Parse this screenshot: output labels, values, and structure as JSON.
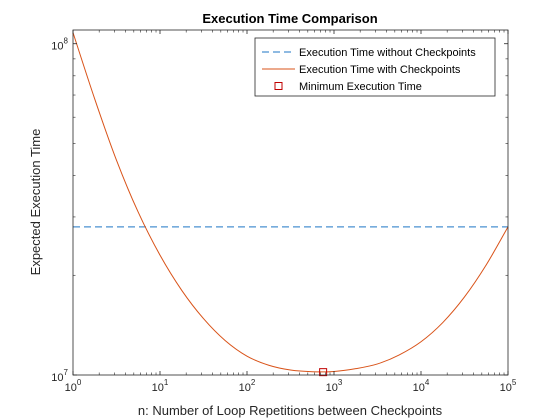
{
  "chart_data": {
    "type": "line",
    "title": "Execution Time Comparison",
    "xlabel": "n: Number of Loop Repetitions between Checkpoints",
    "ylabel": "Expected Execution Time",
    "xscale": "log",
    "yscale": "log",
    "xlim": [
      1,
      100000
    ],
    "ylim": [
      10000000,
      110000000
    ],
    "x_ticks": [
      1,
      10,
      100,
      1000,
      10000,
      100000
    ],
    "x_tick_labels": [
      {
        "base": "10",
        "exp": "0"
      },
      {
        "base": "10",
        "exp": "1"
      },
      {
        "base": "10",
        "exp": "2"
      },
      {
        "base": "10",
        "exp": "3"
      },
      {
        "base": "10",
        "exp": "4"
      },
      {
        "base": "10",
        "exp": "5"
      }
    ],
    "y_ticks": [
      10000000,
      100000000
    ],
    "y_tick_labels": [
      {
        "base": "10",
        "exp": "7"
      },
      {
        "base": "10",
        "exp": "8"
      }
    ],
    "grid": false,
    "legend_position": "top-right",
    "series": [
      {
        "name": "Execution Time without Checkpoints",
        "style": "dashed",
        "color": "#4A90D0",
        "x": [
          1,
          100000
        ],
        "y": [
          28000000,
          28000000
        ]
      },
      {
        "name": "Execution Time with Checkpoints",
        "style": "solid",
        "color": "#D95319",
        "x": [
          1,
          1.78,
          3.16,
          5.62,
          10,
          17.8,
          31.6,
          56.2,
          100,
          178,
          316,
          562,
          1000,
          1780,
          3160,
          5620,
          10000,
          17800,
          31600,
          56200,
          100000
        ],
        "y": [
          108000000,
          68000000,
          44500000,
          31000000,
          23000000,
          18000000,
          14800000,
          12700000,
          11400000,
          10700000,
          10350000,
          10230000,
          10250000,
          10450000,
          10800000,
          11500000,
          12600000,
          14400000,
          17200000,
          21500000,
          28000000
        ]
      },
      {
        "name": "Minimum Execution Time",
        "style": "marker-square",
        "color": "#C00000",
        "x": [
          750
        ],
        "y": [
          10200000
        ]
      }
    ]
  }
}
